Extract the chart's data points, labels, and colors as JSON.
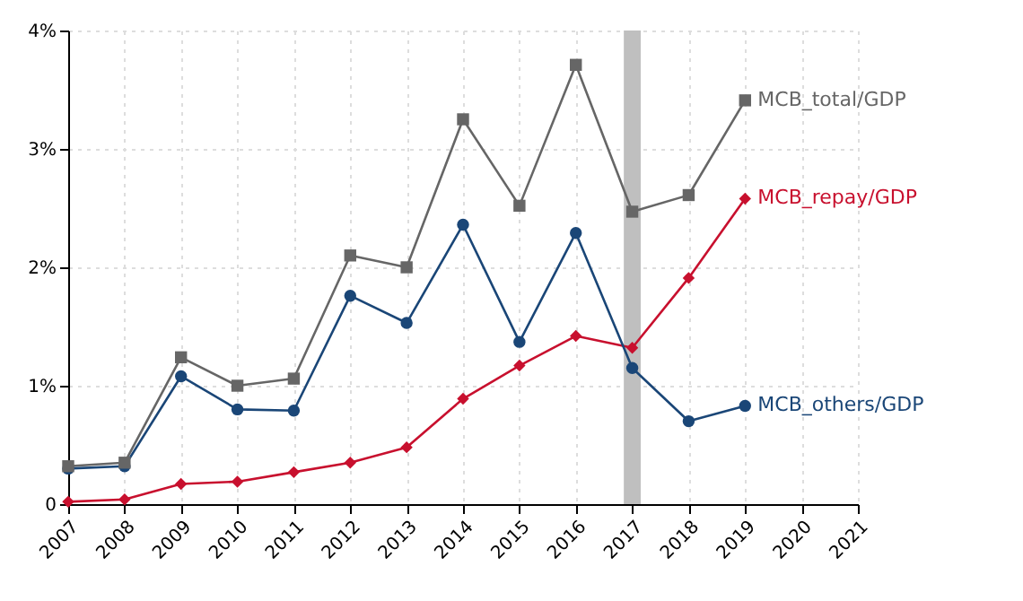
{
  "chart_data": {
    "type": "line",
    "x": [
      2007,
      2008,
      2009,
      2010,
      2011,
      2012,
      2013,
      2014,
      2015,
      2016,
      2017,
      2018,
      2019
    ],
    "series": [
      {
        "name": "MCB_total/GDP",
        "color": "#666666",
        "marker": "square",
        "values": [
          0.32,
          0.35,
          1.24,
          1.0,
          1.06,
          2.1,
          2.0,
          3.25,
          2.52,
          3.71,
          2.47,
          2.61,
          3.41
        ]
      },
      {
        "name": "MCB_repay/GDP",
        "color": "#c8102e",
        "marker": "diamond",
        "values": [
          0.02,
          0.04,
          0.17,
          0.19,
          0.27,
          0.35,
          0.48,
          0.89,
          1.17,
          1.42,
          1.32,
          1.91,
          2.58
        ]
      },
      {
        "name": "MCB_others/GDP",
        "color": "#1a4677",
        "marker": "circle",
        "values": [
          0.3,
          0.32,
          1.08,
          0.8,
          0.79,
          1.76,
          1.53,
          2.36,
          1.37,
          2.29,
          1.15,
          0.7,
          0.83
        ]
      }
    ],
    "xlim": [
      2007,
      2021
    ],
    "xticks": [
      2007,
      2008,
      2009,
      2010,
      2011,
      2012,
      2013,
      2014,
      2015,
      2016,
      2017,
      2018,
      2019,
      2020,
      2021
    ],
    "ylim": [
      0,
      4
    ],
    "yticks": [
      0,
      {
        "value": 1,
        "label": "1%"
      },
      {
        "value": 2,
        "label": "2%"
      },
      {
        "value": 3,
        "label": "3%"
      },
      {
        "value": 4,
        "label": "4%"
      }
    ],
    "bands": [
      {
        "axis": "x",
        "from": 2016.85,
        "to": 2017.15,
        "color": "#bfbfbf"
      }
    ],
    "grid": true,
    "line_style": "solid",
    "legend": false
  }
}
